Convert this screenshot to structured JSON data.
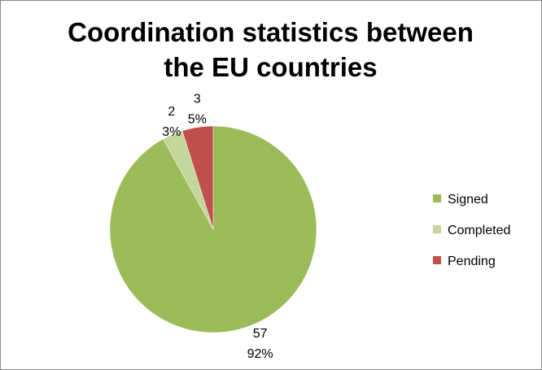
{
  "chart_data": {
    "type": "pie",
    "title": "Coordination statistics between the EU countries",
    "categories": [
      "Signed",
      "Completed",
      "Pending"
    ],
    "values": [
      57,
      2,
      3
    ],
    "percent_labels": [
      "92%",
      "3%",
      "5%"
    ],
    "colors": [
      "#9bbb59",
      "#c3d69b",
      "#c0504d"
    ],
    "legend": "right"
  }
}
